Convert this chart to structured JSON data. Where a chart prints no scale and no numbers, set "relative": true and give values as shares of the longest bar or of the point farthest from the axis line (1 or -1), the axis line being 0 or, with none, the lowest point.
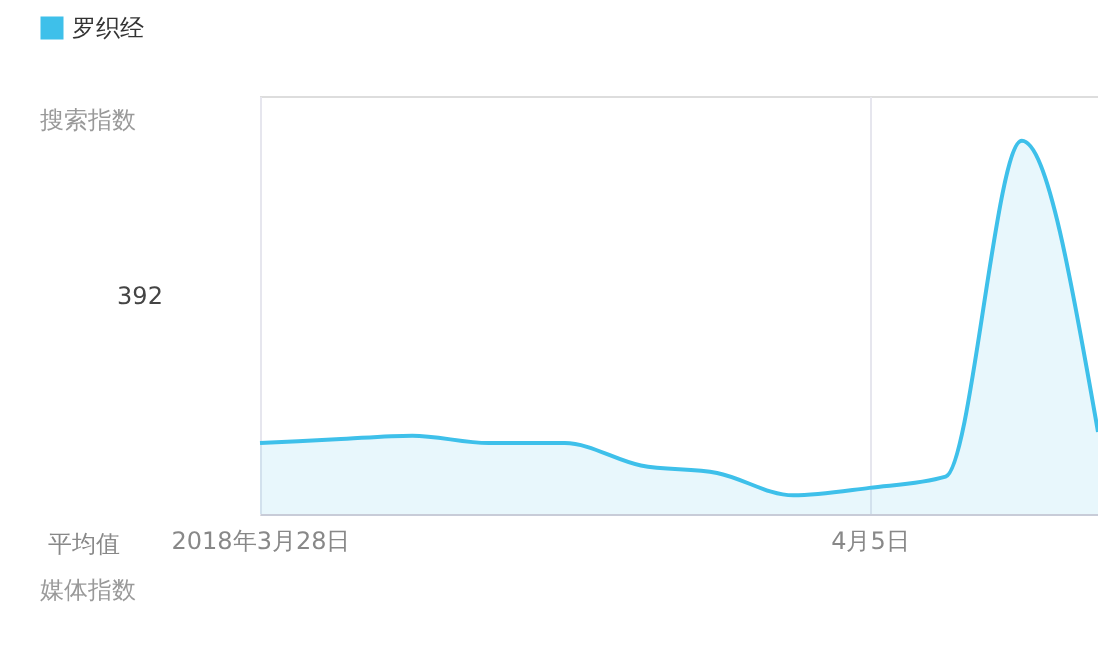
{
  "chart_data": {
    "type": "area",
    "relative": true,
    "legend": "top left",
    "grid": "x",
    "x": [
      "2018-03-28",
      "2018-03-29",
      "2018-03-30",
      "2018-03-31",
      "2018-04-01",
      "2018-04-02",
      "2018-04-03",
      "2018-04-04",
      "2018-04-05",
      "2018-04-06",
      "2018-04-07",
      "2018-04-08"
    ],
    "series": [
      {
        "name": "罗织经",
        "color": "#3ec0ea",
        "values": [
          0.19,
          0.2,
          0.21,
          0.19,
          0.19,
          0.13,
          0.11,
          0.05,
          0.07,
          0.1,
          1,
          0.22
        ]
      }
    ],
    "xlim": [
      "2018-03-28",
      "2018-04-08"
    ],
    "xticks": [
      {
        "value": "2018-03-28",
        "label": "2018年3月28日"
      },
      {
        "value": "2018-04-05",
        "label": "4月5日"
      }
    ],
    "annotations": [
      "搜索指数",
      "392",
      "平均值",
      "媒体指数"
    ]
  }
}
